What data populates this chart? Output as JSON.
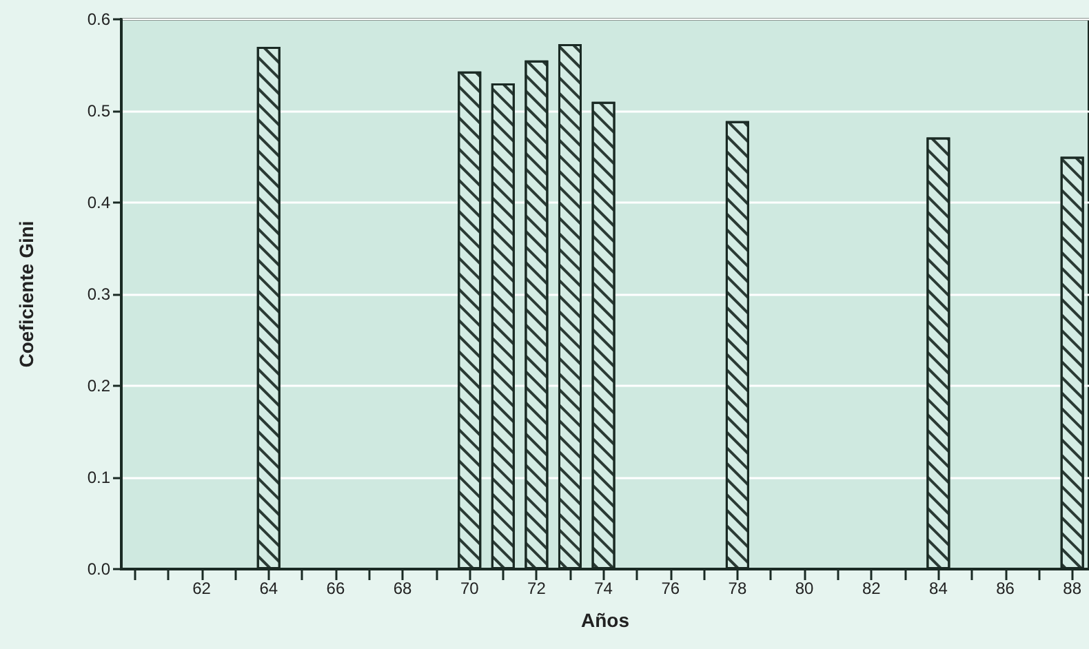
{
  "chart_data": {
    "type": "bar",
    "xlabel": "Años",
    "ylabel": "Coeficiente Gini",
    "x": [
      64,
      70,
      71,
      72,
      73,
      74,
      78,
      84,
      88
    ],
    "values": [
      0.57,
      0.543,
      0.53,
      0.555,
      0.573,
      0.51,
      0.489,
      0.471,
      0.45
    ],
    "color": "#d4ece4",
    "xlim": [
      59.6,
      88.5
    ],
    "xticks": [
      {
        "value": 60,
        "label": null
      },
      {
        "value": 61,
        "label": null
      },
      62,
      {
        "value": 63,
        "label": null
      },
      64,
      {
        "value": 65,
        "label": null
      },
      66,
      {
        "value": 67,
        "label": null
      },
      68,
      {
        "value": 69,
        "label": null
      },
      70,
      {
        "value": 71,
        "label": null
      },
      72,
      {
        "value": 73,
        "label": null
      },
      74,
      {
        "value": 75,
        "label": null
      },
      76,
      {
        "value": 77,
        "label": null
      },
      78,
      {
        "value": 79,
        "label": null
      },
      80,
      {
        "value": 81,
        "label": null
      },
      82,
      {
        "value": 83,
        "label": null
      },
      84,
      {
        "value": 85,
        "label": null
      },
      86,
      {
        "value": 87,
        "label": null
      },
      88
    ],
    "ylim": [
      0,
      0.6
    ],
    "yticks": [
      {
        "value": 0,
        "label": "0.0"
      },
      {
        "value": 0.1,
        "label": "0.1"
      },
      {
        "value": 0.2,
        "label": "0.2"
      },
      {
        "value": 0.3,
        "label": "0.3"
      },
      {
        "value": 0.4,
        "label": "0.4"
      },
      {
        "value": 0.5,
        "label": "0.5"
      },
      {
        "value": 0.6,
        "label": "0.6"
      }
    ],
    "grid": "y"
  }
}
